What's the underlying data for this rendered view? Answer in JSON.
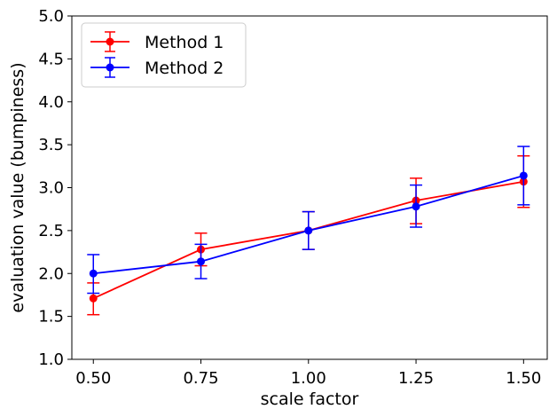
{
  "chart_data": {
    "type": "line",
    "xlabel": "scale factor",
    "ylabel": "evaluation value (bumpiness)",
    "x": [
      0.5,
      0.75,
      1.0,
      1.25,
      1.5
    ],
    "x_tick_labels": [
      "0.50",
      "0.75",
      "1.00",
      "1.25",
      "1.50"
    ],
    "y_tick_labels": [
      "1.0",
      "1.5",
      "2.0",
      "2.5",
      "3.0",
      "3.5",
      "4.0",
      "4.5",
      "5.0"
    ],
    "xlim": [
      0.45,
      1.555
    ],
    "ylim": [
      1.0,
      5.0
    ],
    "grid": false,
    "legend_position": "top-left",
    "series": [
      {
        "name": "Method 1",
        "color": "#ff0000",
        "values": [
          1.71,
          2.28,
          2.5,
          2.85,
          3.07
        ],
        "yerr_low": [
          1.52,
          2.09,
          2.28,
          2.58,
          2.77
        ],
        "yerr_high": [
          1.89,
          2.47,
          2.72,
          3.11,
          3.37
        ]
      },
      {
        "name": "Method 2",
        "color": "#0000ff",
        "values": [
          2.0,
          2.14,
          2.5,
          2.78,
          3.14
        ],
        "yerr_low": [
          1.77,
          1.94,
          2.28,
          2.54,
          2.8
        ],
        "yerr_high": [
          2.22,
          2.34,
          2.72,
          3.03,
          3.48
        ]
      }
    ]
  }
}
